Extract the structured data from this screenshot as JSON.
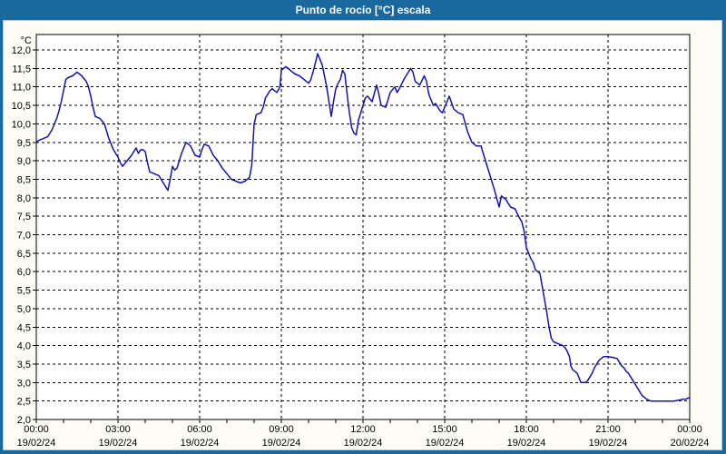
{
  "window": {
    "title": "Punto de rocío [°C] escala"
  },
  "colors": {
    "titlebar": "#1A699E",
    "frame": "#1A699E",
    "line": "#1414AA",
    "grid": "#000000",
    "panel_bg": "#FDFDF6",
    "plot_bg": "#FFFFFF",
    "text": "#000000"
  },
  "chart_data": {
    "type": "line",
    "title": "Punto de rocío [°C] escala",
    "ylabel": "°C",
    "y_unit_label": "°C",
    "ylim": [
      2.0,
      12.0
    ],
    "y_tick_step": 0.5,
    "y_tick_labels": [
      "12,0",
      "11,5",
      "11,0",
      "10,5",
      "10,0",
      "9,5",
      "9,0",
      "8,5",
      "8,0",
      "7,5",
      "7,0",
      "6,5",
      "6,0",
      "5,5",
      "5,0",
      "4,5",
      "4,0",
      "3,5",
      "3,0",
      "2,5",
      "2,0"
    ],
    "x_ticks": [
      {
        "time": "00:00",
        "date": "19/02/24",
        "minutes": 0
      },
      {
        "time": "03:00",
        "date": "19/02/24",
        "minutes": 180
      },
      {
        "time": "06:00",
        "date": "19/02/24",
        "minutes": 360
      },
      {
        "time": "09:00",
        "date": "19/02/24",
        "minutes": 540
      },
      {
        "time": "12:00",
        "date": "19/02/24",
        "minutes": 720
      },
      {
        "time": "15:00",
        "date": "19/02/24",
        "minutes": 900
      },
      {
        "time": "18:00",
        "date": "19/02/24",
        "minutes": 1080
      },
      {
        "time": "21:00",
        "date": "19/02/24",
        "minutes": 1260
      },
      {
        "time": "00:00",
        "date": "20/02/24",
        "minutes": 1440
      }
    ],
    "x_range_minutes": [
      0,
      1440
    ],
    "minor_x_tick_minutes": 60,
    "grid": "dashed",
    "legend": "none",
    "series": [
      {
        "name": "Punto de rocío",
        "color": "#1414AA",
        "points": [
          [
            0,
            9.5
          ],
          [
            5,
            9.55
          ],
          [
            15,
            9.6
          ],
          [
            25,
            9.65
          ],
          [
            35,
            9.85
          ],
          [
            45,
            10.15
          ],
          [
            50,
            10.35
          ],
          [
            55,
            10.6
          ],
          [
            60,
            10.9
          ],
          [
            65,
            11.2
          ],
          [
            70,
            11.25
          ],
          [
            80,
            11.3
          ],
          [
            90,
            11.4
          ],
          [
            95,
            11.35
          ],
          [
            100,
            11.3
          ],
          [
            110,
            11.15
          ],
          [
            115,
            11.0
          ],
          [
            120,
            10.75
          ],
          [
            125,
            10.45
          ],
          [
            130,
            10.2
          ],
          [
            140,
            10.15
          ],
          [
            150,
            10.0
          ],
          [
            155,
            9.8
          ],
          [
            160,
            9.6
          ],
          [
            170,
            9.3
          ],
          [
            180,
            9.1
          ],
          [
            185,
            8.95
          ],
          [
            190,
            8.85
          ],
          [
            200,
            9.0
          ],
          [
            210,
            9.15
          ],
          [
            220,
            9.35
          ],
          [
            225,
            9.2
          ],
          [
            230,
            9.3
          ],
          [
            235,
            9.3
          ],
          [
            240,
            9.25
          ],
          [
            245,
            8.95
          ],
          [
            250,
            8.7
          ],
          [
            260,
            8.65
          ],
          [
            270,
            8.6
          ],
          [
            280,
            8.4
          ],
          [
            290,
            8.2
          ],
          [
            295,
            8.5
          ],
          [
            300,
            8.85
          ],
          [
            305,
            8.75
          ],
          [
            310,
            8.8
          ],
          [
            320,
            9.2
          ],
          [
            330,
            9.5
          ],
          [
            340,
            9.4
          ],
          [
            350,
            9.15
          ],
          [
            360,
            9.1
          ],
          [
            365,
            9.3
          ],
          [
            370,
            9.45
          ],
          [
            380,
            9.4
          ],
          [
            390,
            9.15
          ],
          [
            400,
            9.0
          ],
          [
            410,
            8.8
          ],
          [
            420,
            8.65
          ],
          [
            430,
            8.5
          ],
          [
            440,
            8.45
          ],
          [
            450,
            8.4
          ],
          [
            460,
            8.45
          ],
          [
            470,
            8.55
          ],
          [
            475,
            8.9
          ],
          [
            480,
            10.0
          ],
          [
            485,
            10.25
          ],
          [
            495,
            10.3
          ],
          [
            500,
            10.45
          ],
          [
            505,
            10.7
          ],
          [
            515,
            10.9
          ],
          [
            520,
            10.95
          ],
          [
            525,
            10.9
          ],
          [
            530,
            10.85
          ],
          [
            535,
            10.95
          ],
          [
            537,
            11.0
          ],
          [
            540,
            11.45
          ],
          [
            550,
            11.55
          ],
          [
            560,
            11.45
          ],
          [
            570,
            11.35
          ],
          [
            580,
            11.3
          ],
          [
            590,
            11.2
          ],
          [
            600,
            11.1
          ],
          [
            605,
            11.2
          ],
          [
            612,
            11.5
          ],
          [
            620,
            11.9
          ],
          [
            625,
            11.75
          ],
          [
            630,
            11.6
          ],
          [
            640,
            11.0
          ],
          [
            645,
            10.6
          ],
          [
            650,
            10.2
          ],
          [
            655,
            10.6
          ],
          [
            660,
            10.95
          ],
          [
            665,
            11.1
          ],
          [
            670,
            11.2
          ],
          [
            675,
            11.45
          ],
          [
            680,
            11.35
          ],
          [
            685,
            10.8
          ],
          [
            690,
            10.3
          ],
          [
            695,
            9.9
          ],
          [
            700,
            9.75
          ],
          [
            705,
            9.7
          ],
          [
            710,
            10.1
          ],
          [
            715,
            10.3
          ],
          [
            720,
            10.5
          ],
          [
            725,
            10.7
          ],
          [
            730,
            10.75
          ],
          [
            740,
            10.6
          ],
          [
            750,
            11.05
          ],
          [
            755,
            10.8
          ],
          [
            760,
            10.5
          ],
          [
            770,
            10.45
          ],
          [
            780,
            10.85
          ],
          [
            790,
            11.0
          ],
          [
            795,
            10.85
          ],
          [
            800,
            10.95
          ],
          [
            810,
            11.2
          ],
          [
            820,
            11.4
          ],
          [
            825,
            11.5
          ],
          [
            830,
            11.4
          ],
          [
            835,
            11.15
          ],
          [
            845,
            11.05
          ],
          [
            855,
            11.3
          ],
          [
            860,
            11.15
          ],
          [
            865,
            10.8
          ],
          [
            875,
            10.5
          ],
          [
            880,
            10.55
          ],
          [
            890,
            10.35
          ],
          [
            895,
            10.3
          ],
          [
            900,
            10.45
          ],
          [
            905,
            10.6
          ],
          [
            910,
            10.75
          ],
          [
            920,
            10.4
          ],
          [
            930,
            10.3
          ],
          [
            940,
            10.25
          ],
          [
            950,
            9.8
          ],
          [
            960,
            9.5
          ],
          [
            970,
            9.4
          ],
          [
            980,
            9.4
          ],
          [
            990,
            9.0
          ],
          [
            1000,
            8.6
          ],
          [
            1010,
            8.2
          ],
          [
            1020,
            7.75
          ],
          [
            1025,
            8.05
          ],
          [
            1035,
            7.95
          ],
          [
            1045,
            7.75
          ],
          [
            1055,
            7.7
          ],
          [
            1065,
            7.45
          ],
          [
            1070,
            7.35
          ],
          [
            1075,
            7.1
          ],
          [
            1080,
            6.65
          ],
          [
            1090,
            6.35
          ],
          [
            1095,
            6.25
          ],
          [
            1100,
            6.05
          ],
          [
            1105,
            6.0
          ],
          [
            1110,
            5.95
          ],
          [
            1115,
            5.6
          ],
          [
            1120,
            5.25
          ],
          [
            1125,
            4.9
          ],
          [
            1130,
            4.5
          ],
          [
            1135,
            4.2
          ],
          [
            1140,
            4.1
          ],
          [
            1150,
            4.05
          ],
          [
            1160,
            4.0
          ],
          [
            1165,
            3.95
          ],
          [
            1170,
            3.85
          ],
          [
            1175,
            3.7
          ],
          [
            1178,
            3.45
          ],
          [
            1182,
            3.35
          ],
          [
            1187,
            3.3
          ],
          [
            1192,
            3.25
          ],
          [
            1197,
            3.1
          ],
          [
            1200,
            3.0
          ],
          [
            1210,
            3.0
          ],
          [
            1215,
            3.05
          ],
          [
            1220,
            3.15
          ],
          [
            1225,
            3.25
          ],
          [
            1230,
            3.4
          ],
          [
            1235,
            3.5
          ],
          [
            1240,
            3.6
          ],
          [
            1245,
            3.65
          ],
          [
            1250,
            3.7
          ],
          [
            1260,
            3.7
          ],
          [
            1270,
            3.68
          ],
          [
            1280,
            3.65
          ],
          [
            1285,
            3.55
          ],
          [
            1290,
            3.45
          ],
          [
            1295,
            3.4
          ],
          [
            1300,
            3.3
          ],
          [
            1305,
            3.25
          ],
          [
            1310,
            3.15
          ],
          [
            1315,
            3.05
          ],
          [
            1320,
            2.95
          ],
          [
            1325,
            2.85
          ],
          [
            1330,
            2.75
          ],
          [
            1335,
            2.65
          ],
          [
            1340,
            2.6
          ],
          [
            1345,
            2.55
          ],
          [
            1350,
            2.52
          ],
          [
            1355,
            2.5
          ],
          [
            1370,
            2.5
          ],
          [
            1390,
            2.5
          ],
          [
            1405,
            2.5
          ],
          [
            1415,
            2.52
          ],
          [
            1425,
            2.55
          ],
          [
            1432,
            2.55
          ],
          [
            1440,
            2.6
          ]
        ]
      }
    ]
  }
}
